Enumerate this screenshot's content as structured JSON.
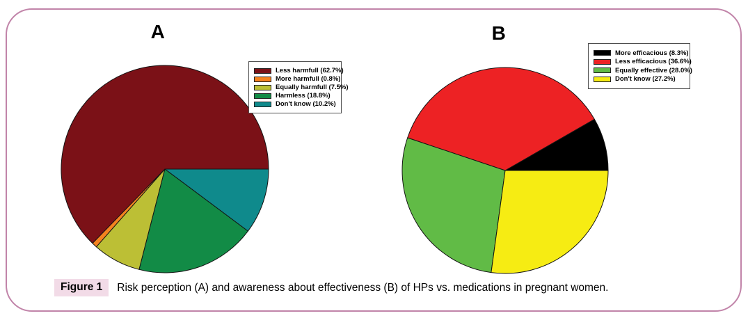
{
  "figure": {
    "caption_label": "Figure 1",
    "caption_text": "Risk perception (A) and awareness about effectiveness (B) of HPs vs. medications in pregnant women."
  },
  "colors": {
    "frame_border": "#c184a9",
    "caption_highlight": "#f2dbe7",
    "slice_outline": "#141414",
    "legend_border": "#4d4d4d"
  },
  "chart_data": [
    {
      "type": "pie",
      "title": "A",
      "subtitle": "Risk perception of HPs vs. medications",
      "start_angle_deg": 0,
      "direction": "counterclockwise",
      "legend_position": "upper-right",
      "slices": [
        {
          "label": "Less harmfull (62.7%)",
          "category": "Less harmfull",
          "value": 62.7,
          "color": "#7b1117"
        },
        {
          "label": "More harmfull (0.8%)",
          "category": "More harmfull",
          "value": 0.8,
          "color": "#f5821f"
        },
        {
          "label": "Equally harmfull (7.5%)",
          "category": "Equally harmfull",
          "value": 7.5,
          "color": "#bcbf35"
        },
        {
          "label": "Harmless (18.8%)",
          "category": "Harmless",
          "value": 18.8,
          "color": "#128b46"
        },
        {
          "label": "Don't know (10.2%)",
          "category": "Don't know",
          "value": 10.2,
          "color": "#0f8a8c"
        }
      ]
    },
    {
      "type": "pie",
      "title": "B",
      "subtitle": "Awareness about effectiveness of HPs vs. medications",
      "start_angle_deg": 0,
      "direction": "counterclockwise",
      "legend_position": "upper-right",
      "slices": [
        {
          "label": "More efficacious (8.3%)",
          "category": "More efficacious",
          "value": 8.3,
          "color": "#000000"
        },
        {
          "label": "Less efficacious (36.6%)",
          "category": "Less efficacious",
          "value": 36.6,
          "color": "#ed2224"
        },
        {
          "label": "Equally effective (28.0%)",
          "category": "Equally effective",
          "value": 28.0,
          "color": "#61bb46"
        },
        {
          "label": "Don't know (27.2%)",
          "category": "Don't know",
          "value": 27.2,
          "color": "#f6ec13"
        }
      ]
    }
  ]
}
